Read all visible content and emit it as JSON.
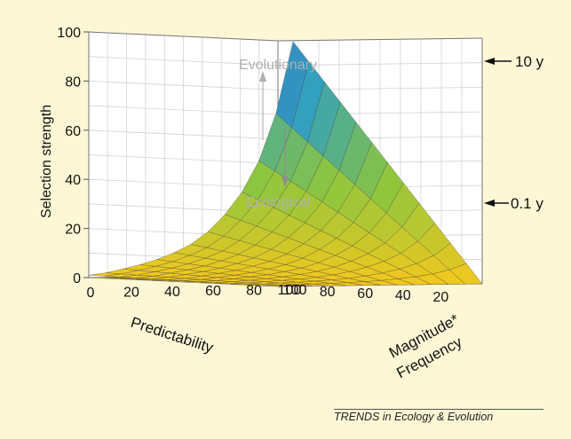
{
  "chart_data": {
    "type": "surface3d",
    "zlabel": "Selection strength",
    "xlabel": "Predictability",
    "ylabel_line1": "Magnitude*",
    "ylabel_line2": "Frequency",
    "z_ticks": [
      "0",
      "20",
      "40",
      "60",
      "80",
      "100"
    ],
    "x_ticks": [
      "20",
      "40",
      "60",
      "80",
      "100"
    ],
    "y_ticks": [
      "0",
      "20",
      "40",
      "60",
      "80",
      "100"
    ],
    "zlim": [
      0,
      100
    ],
    "xlim": [
      0,
      100
    ],
    "ylim": [
      0,
      100
    ],
    "grid": true,
    "annotations": {
      "evolutionary": "Evolutionary",
      "ecological": "Ecological"
    },
    "series": [
      {
        "name": "10 y",
        "marker_label": "10 y",
        "grid": [
          0,
          10,
          20,
          30,
          40,
          50,
          60,
          70,
          80,
          90,
          100
        ],
        "z_at_xmax": [
          1,
          2,
          4,
          6,
          9,
          13,
          19,
          28,
          40,
          60,
          95
        ]
      },
      {
        "name": "0.1 y",
        "marker_label": "0.1 y",
        "grid": [
          0,
          10,
          20,
          30,
          40,
          50,
          60,
          70,
          80,
          90,
          100
        ],
        "z_at_xmax": [
          0,
          0,
          0,
          0,
          0,
          0,
          0,
          0,
          1,
          4,
          39
        ]
      }
    ],
    "colors": {
      "low": "#f4c81e",
      "mid": "#8ec63d",
      "high": "#2e9ec3",
      "top": "#4a5fb1",
      "background": "#fdf7d6"
    }
  },
  "credit": "TRENDS in Ecology & Evolution"
}
